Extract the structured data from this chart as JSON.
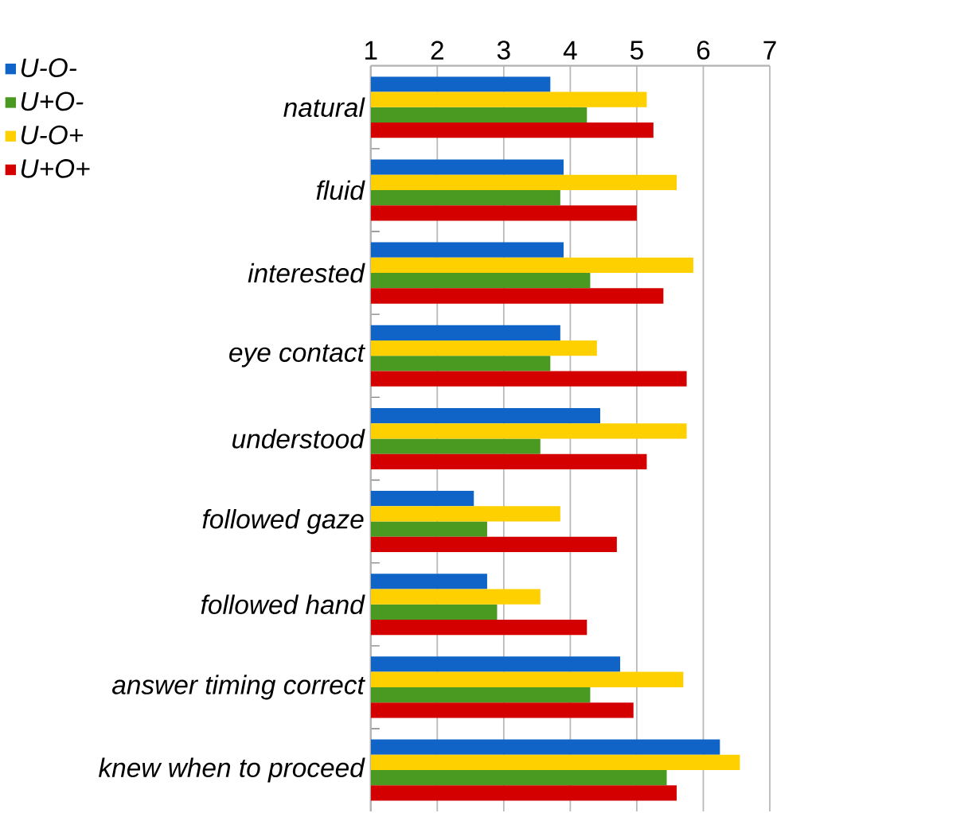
{
  "chart_data": {
    "type": "bar",
    "orientation": "horizontal",
    "categories": [
      "natural",
      "fluid",
      "interested",
      "eye contact",
      "understood",
      "followed gaze",
      "followed hand",
      "answer timing correct",
      "knew when to proceed"
    ],
    "series": [
      {
        "name": "U-O-",
        "color": "#1064c8",
        "values": [
          3.7,
          3.9,
          3.9,
          3.85,
          4.45,
          2.55,
          2.75,
          4.75,
          6.25
        ]
      },
      {
        "name": "U+O-",
        "color": "#4a9a22",
        "values": [
          4.25,
          3.85,
          4.3,
          3.7,
          3.55,
          2.75,
          2.9,
          4.3,
          5.45
        ]
      },
      {
        "name": "U-O+",
        "color": "#ffd000",
        "values": [
          5.15,
          5.6,
          5.85,
          4.4,
          5.75,
          3.85,
          3.55,
          5.7,
          6.55
        ]
      },
      {
        "name": "U+O+",
        "color": "#d40000",
        "values": [
          5.25,
          5.0,
          5.4,
          5.75,
          5.15,
          4.7,
          4.25,
          4.95,
          5.6
        ]
      }
    ],
    "xlim": [
      1,
      7
    ],
    "xticks": [
      1,
      2,
      3,
      4,
      5,
      6,
      7
    ],
    "grid": "x",
    "legend": "top left"
  }
}
